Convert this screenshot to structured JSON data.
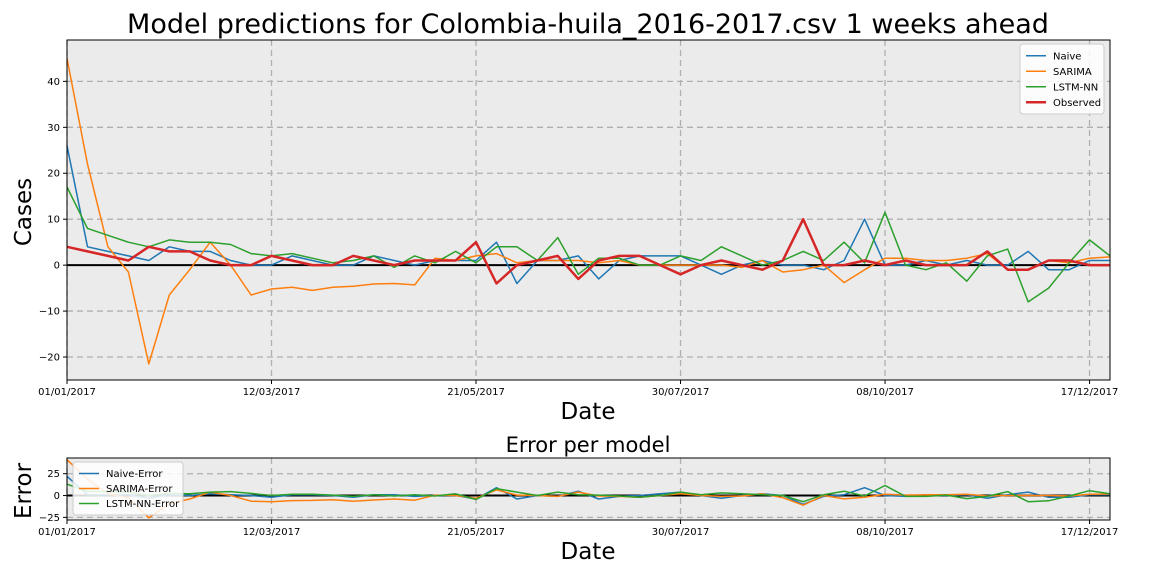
{
  "chart_data": [
    {
      "type": "line",
      "title": "Model predictions for Colombia-huila_2016-2017.csv 1 weeks ahead",
      "xlabel": "Date",
      "ylabel": "Cases",
      "xlim": [
        0,
        51
      ],
      "ylim": [
        -25,
        49
      ],
      "x_ticks": [
        {
          "index": 0,
          "label": "01/01/2017"
        },
        {
          "index": 10,
          "label": "12/03/2017"
        },
        {
          "index": 20,
          "label": "21/05/2017"
        },
        {
          "index": 30,
          "label": "30/07/2017"
        },
        {
          "index": 40,
          "label": "08/10/2017"
        },
        {
          "index": 50,
          "label": "17/12/2017"
        }
      ],
      "y_ticks": [
        -20,
        -10,
        0,
        10,
        20,
        30,
        40
      ],
      "grid": true,
      "legend_position": "upper-right",
      "series": [
        {
          "name": "Naive",
          "color": "#1f77b4",
          "width": 1.5,
          "values": [
            26,
            4,
            3,
            2,
            1,
            4,
            3,
            3,
            1,
            0,
            0,
            2,
            1,
            0,
            0,
            2,
            1,
            0,
            1,
            1,
            1,
            5,
            -4,
            1,
            1,
            2,
            -3,
            1,
            2,
            2,
            2,
            0,
            -2,
            0,
            1,
            0,
            0,
            -1,
            1,
            10,
            0,
            0,
            1,
            0,
            1,
            0,
            0,
            3,
            -1,
            -1,
            1,
            1
          ]
        },
        {
          "name": "SARIMA",
          "color": "#ff7f0e",
          "width": 1.5,
          "values": [
            45,
            22,
            4,
            -1.5,
            -21.5,
            -6.5,
            -1,
            5,
            0,
            -6.5,
            -5.2,
            -4.8,
            -5.5,
            -4.8,
            -4.6,
            -4.1,
            -4,
            -4.3,
            1.5,
            1,
            2,
            2.5,
            0.5,
            1,
            1,
            1,
            0.5,
            1,
            0,
            0,
            0,
            0,
            0,
            -0.5,
            1,
            -1.5,
            -1,
            0,
            -3.8,
            -1,
            1.5,
            1.5,
            1,
            1,
            1.5,
            2.5,
            -1,
            -1,
            1,
            0.5,
            1.5,
            1.8
          ]
        },
        {
          "name": "LSTM-NN",
          "color": "#2ca02c",
          "width": 1.5,
          "values": [
            17,
            8,
            6.5,
            5,
            4,
            5.5,
            5,
            5,
            4.5,
            2.5,
            2,
            2.5,
            1.5,
            0.5,
            1,
            2,
            -0.5,
            2,
            0.5,
            3,
            0.5,
            4,
            4,
            1,
            6,
            -2,
            1.5,
            1.5,
            0,
            0,
            2,
            1,
            4,
            2,
            0,
            1,
            3,
            1,
            5,
            0.5,
            11.5,
            0,
            -1,
            0.5,
            -3.5,
            2,
            3.5,
            -8,
            -5,
            0.5,
            5.5,
            2
          ]
        },
        {
          "name": "Observed",
          "color": "#d62728",
          "width": 2.5,
          "values": [
            4,
            3,
            2,
            1,
            4,
            3,
            3,
            1,
            0,
            0,
            2,
            1,
            0,
            0,
            2,
            1,
            0,
            1,
            1,
            1,
            5,
            -4,
            0,
            1,
            2,
            -3,
            1,
            2,
            2,
            0,
            -2,
            0,
            1,
            0,
            -1,
            1,
            10,
            0,
            0,
            1,
            0,
            1,
            0,
            0,
            0,
            3,
            -1,
            -1,
            1,
            1,
            0,
            0
          ]
        }
      ],
      "hline": {
        "y": 0,
        "color": "#000000"
      }
    },
    {
      "type": "line",
      "title": "Error per model",
      "xlabel": "Date",
      "ylabel": "Error",
      "xlim": [
        0,
        51
      ],
      "ylim": [
        -28,
        43
      ],
      "x_ticks": [
        {
          "index": 0,
          "label": "01/01/2017"
        },
        {
          "index": 10,
          "label": "12/03/2017"
        },
        {
          "index": 20,
          "label": "21/05/2017"
        },
        {
          "index": 30,
          "label": "30/07/2017"
        },
        {
          "index": 40,
          "label": "08/10/2017"
        },
        {
          "index": 50,
          "label": "17/12/2017"
        }
      ],
      "y_ticks": [
        -25,
        0,
        25
      ],
      "grid": true,
      "legend_position": "upper-left",
      "series": [
        {
          "name": "Naive-Error",
          "color": "#1f77b4",
          "width": 1.5,
          "values": [
            22,
            1,
            1,
            1,
            -3,
            1,
            0,
            2,
            1,
            0,
            -2,
            1,
            1,
            0,
            -2,
            1,
            1,
            -1,
            0,
            0,
            -4,
            9,
            -4,
            0,
            -1,
            5,
            -4,
            -1,
            0,
            2,
            4,
            0,
            -3,
            0,
            2,
            0,
            -10,
            -1,
            1,
            9,
            0,
            -1,
            1,
            0,
            1,
            -3,
            1,
            4,
            -2,
            -2,
            1,
            1
          ]
        },
        {
          "name": "SARIMA-Error",
          "color": "#ff7f0e",
          "width": 1.5,
          "values": [
            41,
            19,
            2,
            -2.5,
            -25.5,
            -9.5,
            -4,
            4,
            0,
            -6.5,
            -7.2,
            -5.8,
            -5.5,
            -4.8,
            -6.6,
            -5.1,
            -4,
            -5.3,
            0.5,
            0,
            -3,
            6.5,
            0.5,
            0,
            -1,
            4,
            -0.5,
            -1,
            -2,
            0,
            2,
            0,
            -1,
            -0.5,
            2,
            -2.5,
            -11,
            0,
            -3.8,
            -2,
            1.5,
            0.5,
            1,
            1,
            1.5,
            -0.5,
            0,
            0,
            0,
            -0.5,
            1.5,
            1.8
          ]
        },
        {
          "name": "LSTM-NN-Error",
          "color": "#2ca02c",
          "width": 1.5,
          "values": [
            13,
            5,
            4.5,
            4,
            0,
            2.5,
            2,
            4,
            4.5,
            2.5,
            0,
            1.5,
            1.5,
            0.5,
            -1,
            1,
            -0.5,
            1,
            -0.5,
            2,
            -4.5,
            8,
            4,
            0,
            4,
            1,
            0.5,
            -0.5,
            -2,
            0,
            4,
            1,
            3,
            2,
            1,
            0,
            -7,
            1,
            5,
            -0.5,
            11.5,
            -1,
            -1,
            0.5,
            -3.5,
            -1,
            4.5,
            -7,
            -6,
            -0.5,
            5.5,
            2
          ]
        }
      ],
      "hline": {
        "y": 0,
        "color": "#000000"
      }
    }
  ]
}
